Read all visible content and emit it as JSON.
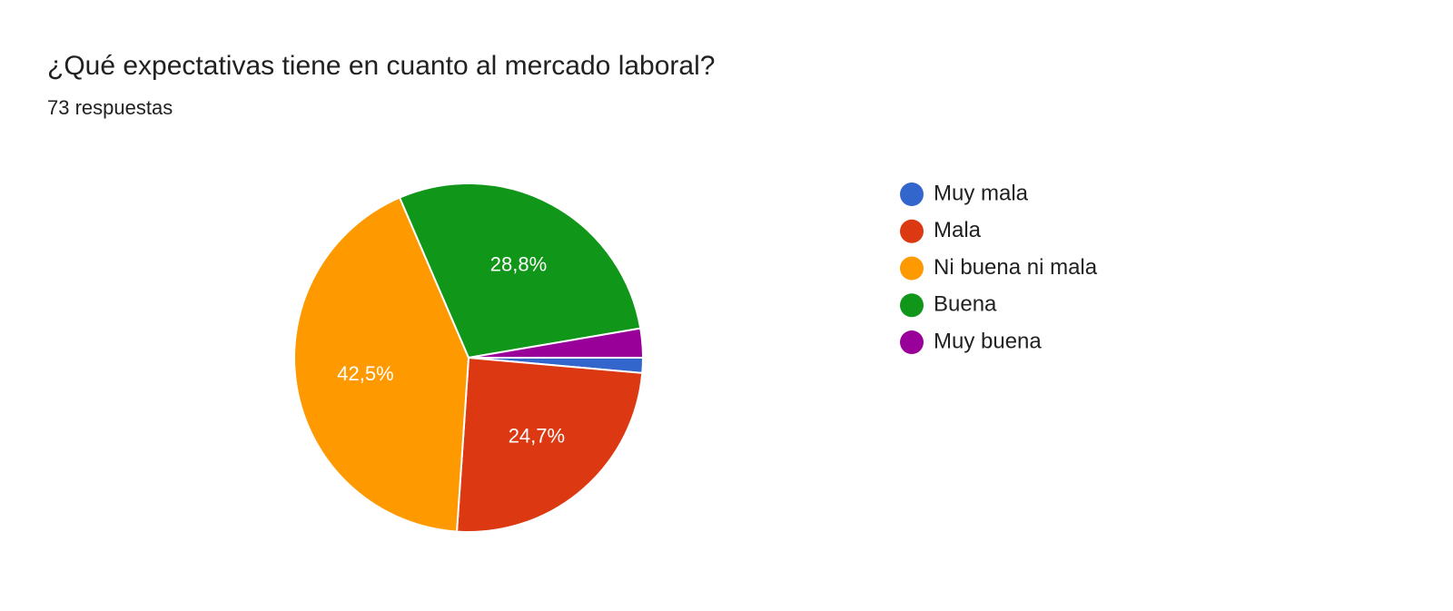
{
  "chart_data": {
    "type": "pie",
    "title": "¿Qué expectativas tiene en cuanto al mercado laboral?",
    "subtitle": "73 respuestas",
    "categories": [
      "Muy mala",
      "Mala",
      "Ni buena ni mala",
      "Buena",
      "Muy buena"
    ],
    "values": [
      1.4,
      24.7,
      42.5,
      28.8,
      2.7
    ],
    "value_labels": [
      null,
      "24,7%",
      "42,5%",
      "28,8%",
      null
    ],
    "colors": [
      "#3366cc",
      "#dc3912",
      "#ff9900",
      "#109618",
      "#990099"
    ],
    "legend": "right"
  }
}
